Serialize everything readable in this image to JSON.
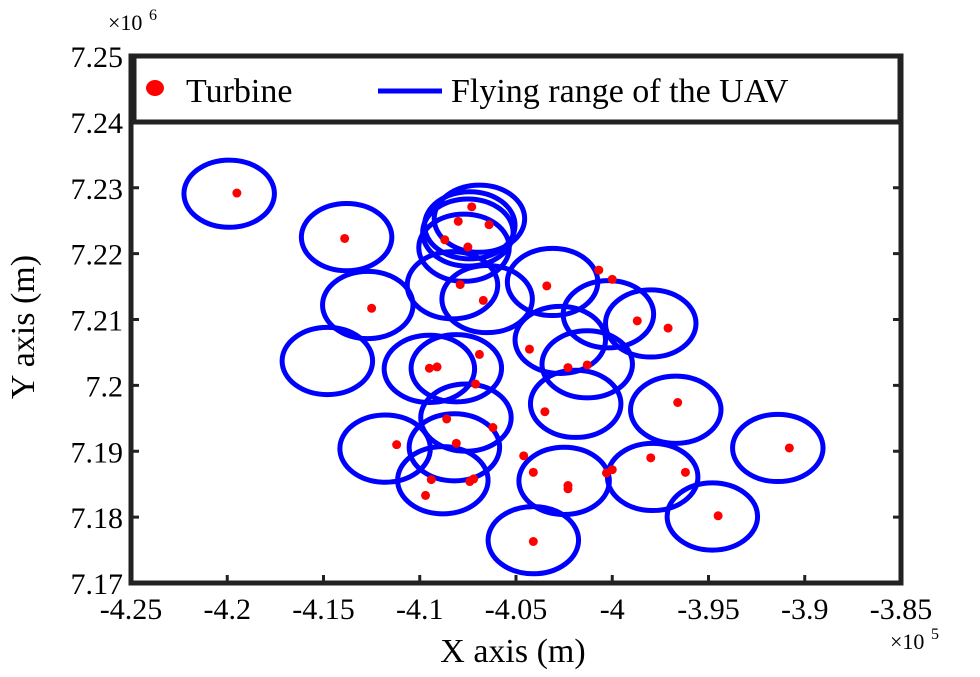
{
  "chart_data": {
    "type": "scatter",
    "xlabel": "X axis (m)",
    "ylabel": "Y axis (m)",
    "x_multiplier_label": "×10",
    "x_multiplier_exp": "5",
    "y_multiplier_label": "×10",
    "y_multiplier_exp": "6",
    "xlim": [
      -4.25,
      -3.85
    ],
    "ylim": [
      7.17,
      7.25
    ],
    "xticks": [
      -4.25,
      -4.2,
      -4.15,
      -4.1,
      -4.05,
      -4.0,
      -3.95,
      -3.9,
      -3.85
    ],
    "xtick_labels": [
      "-4.25",
      "-4.2",
      "-4.15",
      "-4.1",
      "-4.05",
      "-4",
      "-3.95",
      "-3.9",
      "-3.85"
    ],
    "yticks": [
      7.17,
      7.18,
      7.19,
      7.2,
      7.21,
      7.22,
      7.23,
      7.24,
      7.25
    ],
    "ytick_labels": [
      "7.17",
      "7.18",
      "7.19",
      "7.2",
      "7.21",
      "7.22",
      "7.23",
      "7.24",
      "7.25"
    ],
    "grid": false,
    "legend_position": "top",
    "colors": {
      "turbine": "#ff0000",
      "range": "#0000ff",
      "axes": "#222222"
    },
    "ellipse_radius_x": 0.0235,
    "ellipse_radius_y": 0.0051,
    "series": [
      {
        "name": "Turbine",
        "marker": "dot",
        "points": [
          [
            -4.195,
            7.2292
          ],
          [
            -4.139,
            7.2223
          ],
          [
            -4.087,
            7.2221
          ],
          [
            -4.08,
            7.2249
          ],
          [
            -4.073,
            7.2271
          ],
          [
            -4.064,
            7.2244
          ],
          [
            -4.075,
            7.221
          ],
          [
            -4.125,
            7.2117
          ],
          [
            -4.079,
            7.2153
          ],
          [
            -4.067,
            7.2129
          ],
          [
            -4.034,
            7.2151
          ],
          [
            -4.007,
            7.2175
          ],
          [
            -4.0,
            7.2161
          ],
          [
            -3.987,
            7.2098
          ],
          [
            -3.971,
            7.2087
          ],
          [
            -4.043,
            7.2055
          ],
          [
            -4.069,
            7.2047
          ],
          [
            -4.023,
            7.2027
          ],
          [
            -4.013,
            7.2031
          ],
          [
            -4.095,
            7.2026
          ],
          [
            -4.091,
            7.2028
          ],
          [
            -4.071,
            7.2002
          ],
          [
            -3.966,
            7.1974
          ],
          [
            -4.035,
            7.196
          ],
          [
            -4.086,
            7.1949
          ],
          [
            -4.062,
            7.1936
          ],
          [
            -4.112,
            7.191
          ],
          [
            -4.081,
            7.1912
          ],
          [
            -4.046,
            7.1893
          ],
          [
            -4.041,
            7.1868
          ],
          [
            -4.094,
            7.1857
          ],
          [
            -4.074,
            7.1854
          ],
          [
            -4.072,
            7.1858
          ],
          [
            -4.097,
            7.1833
          ],
          [
            -4.023,
            7.1848
          ],
          [
            -4.023,
            7.1843
          ],
          [
            -4.003,
            7.1867
          ],
          [
            -4.0,
            7.1872
          ],
          [
            -3.98,
            7.189
          ],
          [
            -3.962,
            7.1868
          ],
          [
            -3.908,
            7.1905
          ],
          [
            -3.945,
            7.1802
          ],
          [
            -4.041,
            7.1763
          ]
        ]
      },
      {
        "name": "Flying range of the UAV",
        "shape": "ellipse",
        "centers": [
          [
            -4.199,
            7.2291
          ],
          [
            -4.138,
            7.2225
          ],
          [
            -4.074,
            7.2243
          ],
          [
            -4.069,
            7.2253
          ],
          [
            -4.075,
            7.2232
          ],
          [
            -4.077,
            7.2209
          ],
          [
            -4.083,
            7.2152
          ],
          [
            -4.127,
            7.2122
          ],
          [
            -4.065,
            7.2131
          ],
          [
            -4.031,
            7.2157
          ],
          [
            -4.002,
            7.2108
          ],
          [
            -3.98,
            7.2094
          ],
          [
            -4.027,
            7.2069
          ],
          [
            -4.013,
            7.2032
          ],
          [
            -4.095,
            7.2025
          ],
          [
            -4.148,
            7.2037
          ],
          [
            -4.081,
            7.2026
          ],
          [
            -4.019,
            7.1972
          ],
          [
            -3.967,
            7.1963
          ],
          [
            -4.076,
            7.1951
          ],
          [
            -4.118,
            7.1904
          ],
          [
            -4.082,
            7.1906
          ],
          [
            -4.025,
            7.1855
          ],
          [
            -3.979,
            7.1861
          ],
          [
            -3.914,
            7.1905
          ],
          [
            -4.088,
            7.1856
          ],
          [
            -3.948,
            7.1801
          ],
          [
            -4.041,
            7.1765
          ]
        ]
      }
    ]
  }
}
